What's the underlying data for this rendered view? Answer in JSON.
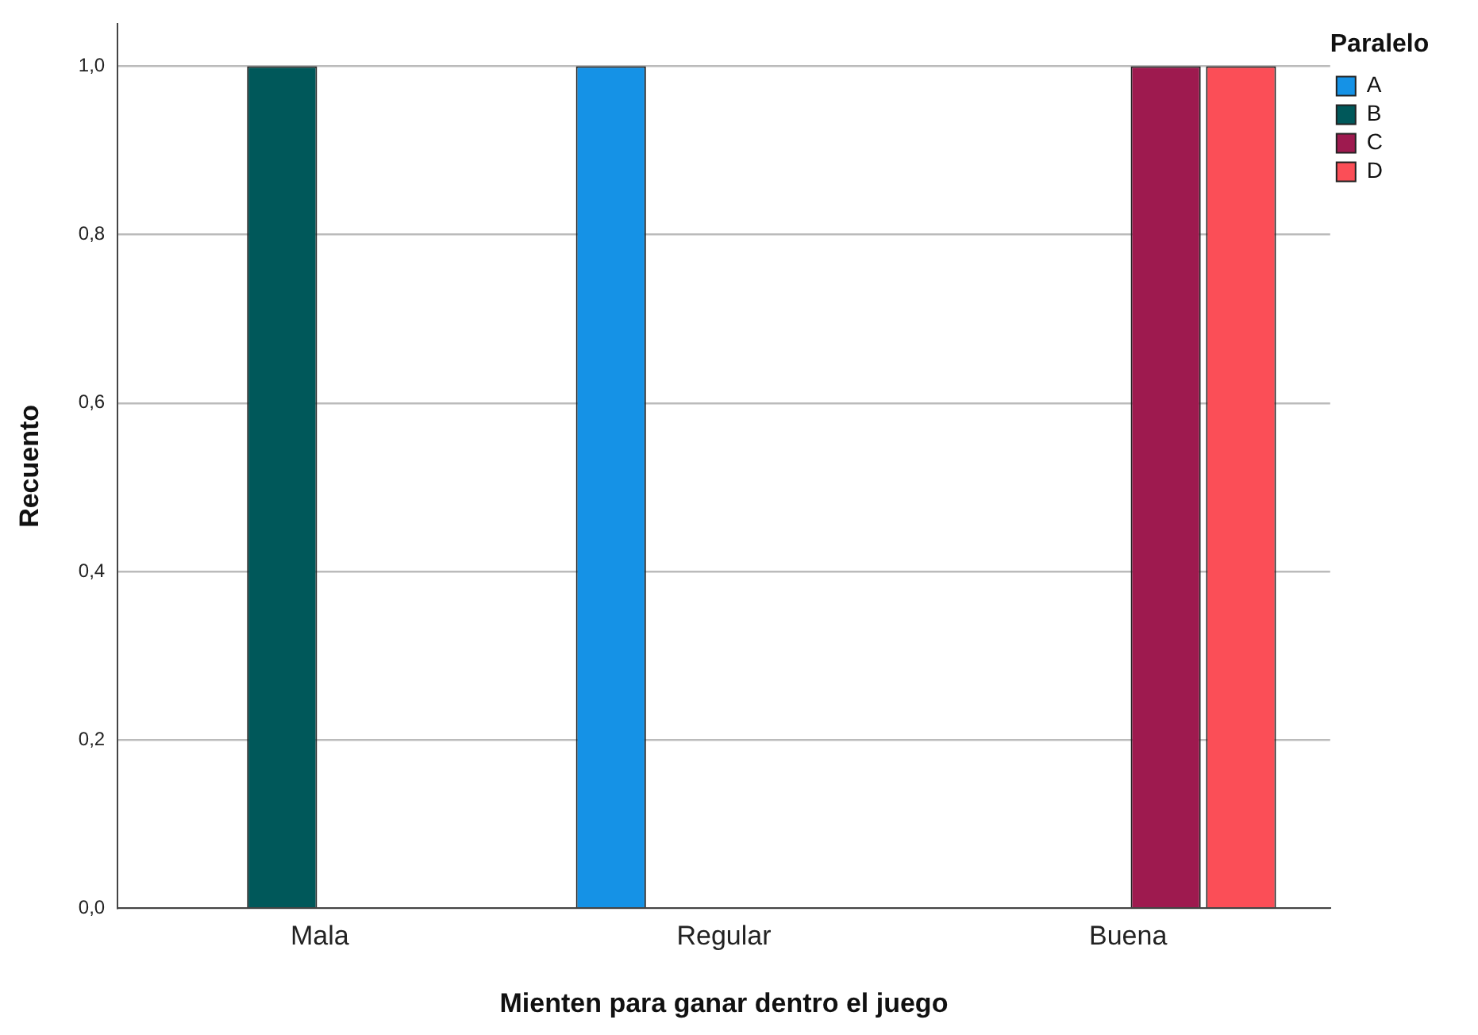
{
  "chart_data": {
    "type": "bar",
    "xlabel": "Mienten para ganar dentro el juego",
    "ylabel": "Recuento",
    "legend_title": "Paralelo",
    "categories": [
      "Mala",
      "Regular",
      "Buena"
    ],
    "series": [
      {
        "name": "A",
        "color": "#1592e6",
        "values": [
          null,
          1,
          null
        ]
      },
      {
        "name": "B",
        "color": "#00585a",
        "values": [
          1,
          null,
          null
        ]
      },
      {
        "name": "C",
        "color": "#9e1a4f",
        "values": [
          null,
          null,
          1
        ]
      },
      {
        "name": "D",
        "color": "#fb4e57",
        "values": [
          null,
          null,
          1
        ]
      }
    ],
    "ylim": [
      0,
      1.05
    ],
    "yticks": [
      {
        "value": 0,
        "label": "0,0"
      },
      {
        "value": 0.2,
        "label": "0,2"
      },
      {
        "value": 0.4,
        "label": "0,4"
      },
      {
        "value": 0.6,
        "label": "0,6"
      },
      {
        "value": 0.8,
        "label": "0,8"
      },
      {
        "value": 1,
        "label": "1,0"
      }
    ],
    "grid": "y",
    "legend": "top right"
  }
}
